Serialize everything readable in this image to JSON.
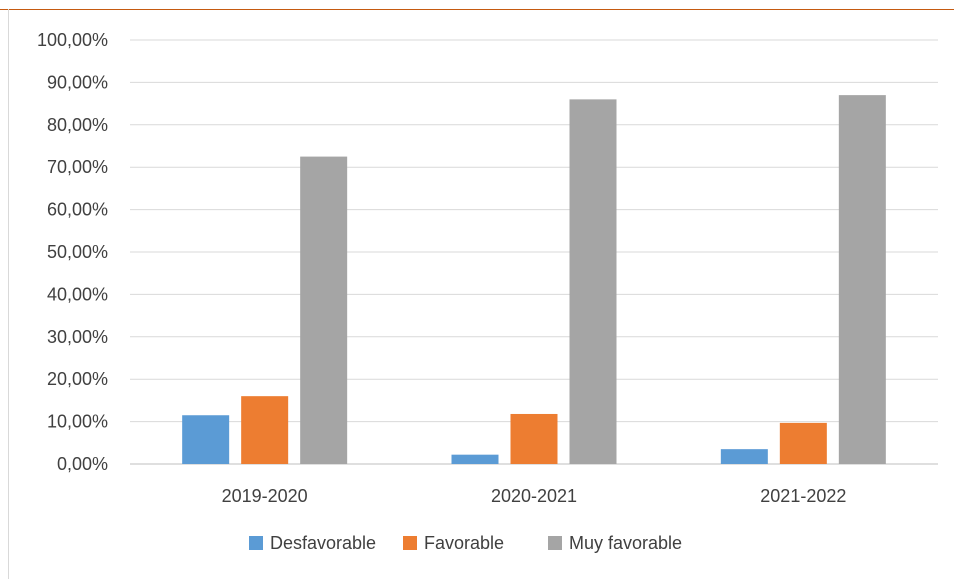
{
  "chart_data": {
    "type": "bar",
    "categories": [
      "2019-2020",
      "2020-2021",
      "2021-2022"
    ],
    "series": [
      {
        "name": "Desfavorable",
        "color": "#5b9bd5",
        "values": [
          11.5,
          2.2,
          3.5
        ]
      },
      {
        "name": "Favorable",
        "color": "#ed7d31",
        "values": [
          16.0,
          11.8,
          9.7
        ]
      },
      {
        "name": "Muy favorable",
        "color": "#a5a5a5",
        "values": [
          72.5,
          86.0,
          87.0
        ]
      }
    ],
    "yticks": [
      "0,00%",
      "10,00%",
      "20,00%",
      "30,00%",
      "40,00%",
      "50,00%",
      "60,00%",
      "70,00%",
      "80,00%",
      "90,00%",
      "100,00%"
    ],
    "ylim": [
      0,
      100
    ],
    "grid": true,
    "legend_position": "bottom"
  }
}
